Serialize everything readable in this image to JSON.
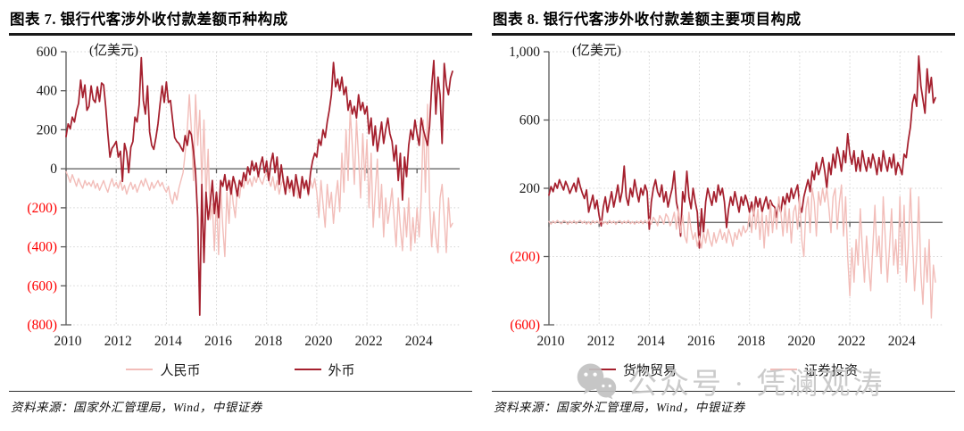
{
  "sources": [
    "资料来源：国家外汇管理局，Wind，中银证券",
    "资料来源：国家外汇管理局，Wind，中银证券"
  ],
  "watermark": {
    "text": "公众号 · 凭澜观涛",
    "icon": "wechat-logo-icon"
  },
  "colors": {
    "dark_red": "#A5202E",
    "pink": "#F2BDB9",
    "negative_tick_label": "#FF0000",
    "axis": "#595959",
    "gridline": "#d4d4d4"
  },
  "chart_data": [
    {
      "type": "line",
      "title": "图表 7. 银行代客涉外收付款差额币种构成",
      "unit": "(亿美元)",
      "x_start_year": 2010,
      "x_step_months": 1,
      "xlim": [
        2010,
        2025.7
      ],
      "ylim": [
        -800,
        600
      ],
      "yticks": [
        600,
        400,
        200,
        0,
        -200,
        -400,
        -600,
        -800
      ],
      "xticks": [
        2010,
        2012,
        2014,
        2016,
        2018,
        2020,
        2022,
        2024
      ],
      "grid": "dotted",
      "legend_position": "bottom",
      "series": [
        {
          "name": "人民币",
          "color": "#F2BDB9",
          "width": 1.4,
          "values": [
            -15,
            -40,
            -70,
            -30,
            -60,
            -90,
            -50,
            -80,
            -100,
            -60,
            -85,
            -70,
            -90,
            -60,
            -100,
            -75,
            -110,
            -85,
            -60,
            -95,
            -120,
            -80,
            -50,
            -90,
            -70,
            -100,
            -60,
            -110,
            -85,
            -130,
            -95,
            -70,
            -105,
            -80,
            -120,
            -90,
            -60,
            -90,
            -50,
            -80,
            -110,
            -70,
            -100,
            -80,
            -60,
            -90,
            -70,
            -100,
            -120,
            -90,
            -150,
            -180,
            -120,
            -160,
            -100,
            -60,
            -20,
            80,
            200,
            380,
            200,
            -60,
            380,
            120,
            300,
            -80,
            250,
            -150,
            100,
            -260,
            -180,
            -420,
            -150,
            -440,
            -80,
            -300,
            -450,
            -120,
            -280,
            -60,
            -180,
            -250,
            -100,
            -150,
            -60,
            -100,
            -30,
            -80,
            -50,
            -90,
            -40,
            -70,
            -30,
            -60,
            -80,
            -40,
            -20,
            -60,
            -90,
            -40,
            -110,
            -60,
            -130,
            -80,
            -50,
            -100,
            -60,
            -120,
            -80,
            -130,
            -60,
            -150,
            -90,
            -40,
            -110,
            -70,
            -140,
            -60,
            -100,
            -50,
            -120,
            -250,
            -60,
            -180,
            -300,
            -80,
            -200,
            -120,
            -280,
            -150,
            -60,
            -220,
            80,
            -120,
            200,
            -60,
            300,
            120,
            -80,
            250,
            60,
            -150,
            180,
            -60,
            150,
            -200,
            80,
            -300,
            -120,
            50,
            -250,
            -80,
            -350,
            -150,
            -280,
            -200,
            -100,
            -250,
            -400,
            -150,
            -300,
            -420,
            -200,
            -350,
            -150,
            -420,
            -250,
            -380,
            -200,
            -350,
            -150,
            250,
            -120,
            330,
            -180,
            -400,
            -220,
            -350,
            -430,
            -150,
            -80,
            -250,
            -430,
            -150,
            -300,
            -280
          ]
        },
        {
          "name": "外币",
          "color": "#A5202E",
          "width": 1.75,
          "values": [
            165,
            230,
            205,
            265,
            240,
            300,
            335,
            455,
            365,
            430,
            300,
            320,
            425,
            355,
            340,
            420,
            345,
            440,
            430,
            315,
            180,
            60,
            105,
            120,
            140,
            60,
            90,
            -65,
            130,
            85,
            -20,
            110,
            140,
            265,
            240,
            330,
            570,
            350,
            280,
            425,
            190,
            120,
            100,
            160,
            230,
            330,
            425,
            340,
            445,
            340,
            350,
            250,
            160,
            140,
            130,
            110,
            90,
            170,
            120,
            195,
            175,
            90,
            -20,
            -250,
            -750,
            -80,
            -480,
            -120,
            -260,
            -180,
            -60,
            -230,
            -120,
            -250,
            -60,
            -90,
            -30,
            -110,
            -60,
            -130,
            -40,
            -80,
            -140,
            -60,
            -90,
            -20,
            -60,
            10,
            -30,
            40,
            -10,
            30,
            -40,
            20,
            60,
            -20,
            40,
            -60,
            30,
            80,
            -20,
            60,
            -80,
            20,
            -60,
            -130,
            -40,
            -100,
            -60,
            -140,
            -30,
            -90,
            -150,
            -40,
            -100,
            -60,
            -130,
            -20,
            40,
            80,
            60,
            150,
            120,
            200,
            160,
            240,
            300,
            380,
            545,
            420,
            460,
            400,
            470,
            380,
            420,
            300,
            350,
            280,
            320,
            260,
            380,
            300,
            340,
            280,
            320,
            180,
            260,
            120,
            220,
            90,
            160,
            240,
            130,
            200,
            260,
            180,
            140,
            40,
            120,
            -60,
            80,
            -160,
            60,
            -40,
            120,
            200,
            150,
            250,
            180,
            120,
            260,
            200,
            160,
            120,
            220,
            420,
            555,
            280,
            470,
            380,
            130,
            540,
            430,
            380,
            465,
            500
          ]
        }
      ]
    },
    {
      "type": "line",
      "title": "图表 8. 银行代客涉外收付款差额主要项目构成",
      "unit": "(亿美元)",
      "x_start_year": 2010,
      "x_step_months": 1,
      "xlim": [
        2010,
        2025.7
      ],
      "ylim": [
        -600,
        1000
      ],
      "yticks": [
        1000,
        600,
        200,
        -200,
        -600
      ],
      "xticks": [
        2010,
        2012,
        2014,
        2016,
        2018,
        2020,
        2022,
        2024
      ],
      "grid": "dotted",
      "legend_position": "bottom",
      "series": [
        {
          "name": "货物贸易",
          "color": "#A5202E",
          "width": 1.75,
          "values": [
            160,
            210,
            180,
            230,
            200,
            250,
            220,
            190,
            240,
            210,
            170,
            200,
            230,
            180,
            260,
            210,
            170,
            140,
            190,
            60,
            110,
            160,
            80,
            130,
            40,
            -20,
            90,
            150,
            60,
            120,
            180,
            90,
            150,
            220,
            120,
            180,
            330,
            150,
            100,
            200,
            150,
            250,
            180,
            120,
            200,
            160,
            220,
            180,
            -40,
            120,
            200,
            250,
            180,
            150,
            220,
            120,
            180,
            90,
            150,
            200,
            300,
            120,
            60,
            -80,
            180,
            120,
            300,
            150,
            80,
            200,
            120,
            60,
            -150,
            80,
            -60,
            120,
            200,
            150,
            100,
            180,
            120,
            220,
            160,
            200,
            120,
            -30,
            80,
            150,
            100,
            180,
            120,
            60,
            150,
            100,
            160,
            120,
            60,
            120,
            40,
            150,
            90,
            140,
            60,
            110,
            150,
            80,
            130,
            100,
            90,
            30,
            120,
            60,
            150,
            100,
            170,
            120,
            200,
            140,
            180,
            220,
            100,
            60,
            150,
            200,
            250,
            180,
            300,
            250,
            350,
            280,
            320,
            380,
            300,
            200,
            350,
            280,
            400,
            320,
            440,
            380,
            300,
            420,
            350,
            520,
            400,
            340,
            420,
            300,
            380,
            300,
            420,
            350,
            300,
            380,
            320,
            400,
            350,
            280,
            380,
            300,
            420,
            350,
            300,
            380,
            320,
            400,
            280,
            350,
            320,
            280,
            400,
            380,
            480,
            560,
            700,
            750,
            680,
            975,
            800,
            720,
            640,
            900,
            760,
            850,
            700,
            730
          ]
        },
        {
          "name": "证券投资",
          "color": "#F2BDB9",
          "width": 1.4,
          "values": [
            5,
            -10,
            8,
            -5,
            12,
            0,
            -8,
            10,
            5,
            -12,
            8,
            -5,
            10,
            -8,
            5,
            12,
            -5,
            8,
            -10,
            5,
            -12,
            10,
            -5,
            8,
            -5,
            10,
            -8,
            5,
            -10,
            12,
            -5,
            8,
            -12,
            5,
            10,
            -8,
            8,
            -5,
            12,
            -8,
            5,
            -10,
            8,
            -5,
            10,
            -8,
            12,
            -5,
            20,
            -10,
            30,
            10,
            -20,
            40,
            20,
            -10,
            50,
            30,
            -20,
            10,
            60,
            -40,
            80,
            -60,
            40,
            -80,
            -120,
            60,
            -40,
            -100,
            -60,
            -140,
            -80,
            -150,
            -60,
            -120,
            -40,
            -100,
            -140,
            -60,
            -120,
            -80,
            -40,
            -100,
            -60,
            -120,
            -40,
            -80,
            -140,
            -60,
            -100,
            -40,
            -80,
            -20,
            -60,
            -40,
            50,
            -60,
            100,
            -40,
            80,
            -100,
            60,
            -150,
            40,
            -80,
            120,
            -60,
            80,
            -40,
            150,
            60,
            -80,
            100,
            -60,
            80,
            -120,
            60,
            100,
            -40,
            150,
            -100,
            -200,
            80,
            150,
            -60,
            200,
            120,
            -80,
            180,
            100,
            200,
            120,
            200,
            80,
            -60,
            150,
            200,
            -40,
            120,
            220,
            -80,
            150,
            -200,
            -430,
            -150,
            -350,
            -100,
            -250,
            80,
            -150,
            -350,
            -80,
            -250,
            -400,
            -150,
            100,
            -200,
            -80,
            -300,
            150,
            -100,
            -350,
            -150,
            80,
            -250,
            -100,
            -300,
            150,
            -250,
            100,
            -350,
            -150,
            200,
            -100,
            -400,
            -200,
            150,
            -300,
            -480,
            -150,
            -350,
            -100,
            -560,
            -250,
            -350
          ]
        }
      ]
    }
  ]
}
